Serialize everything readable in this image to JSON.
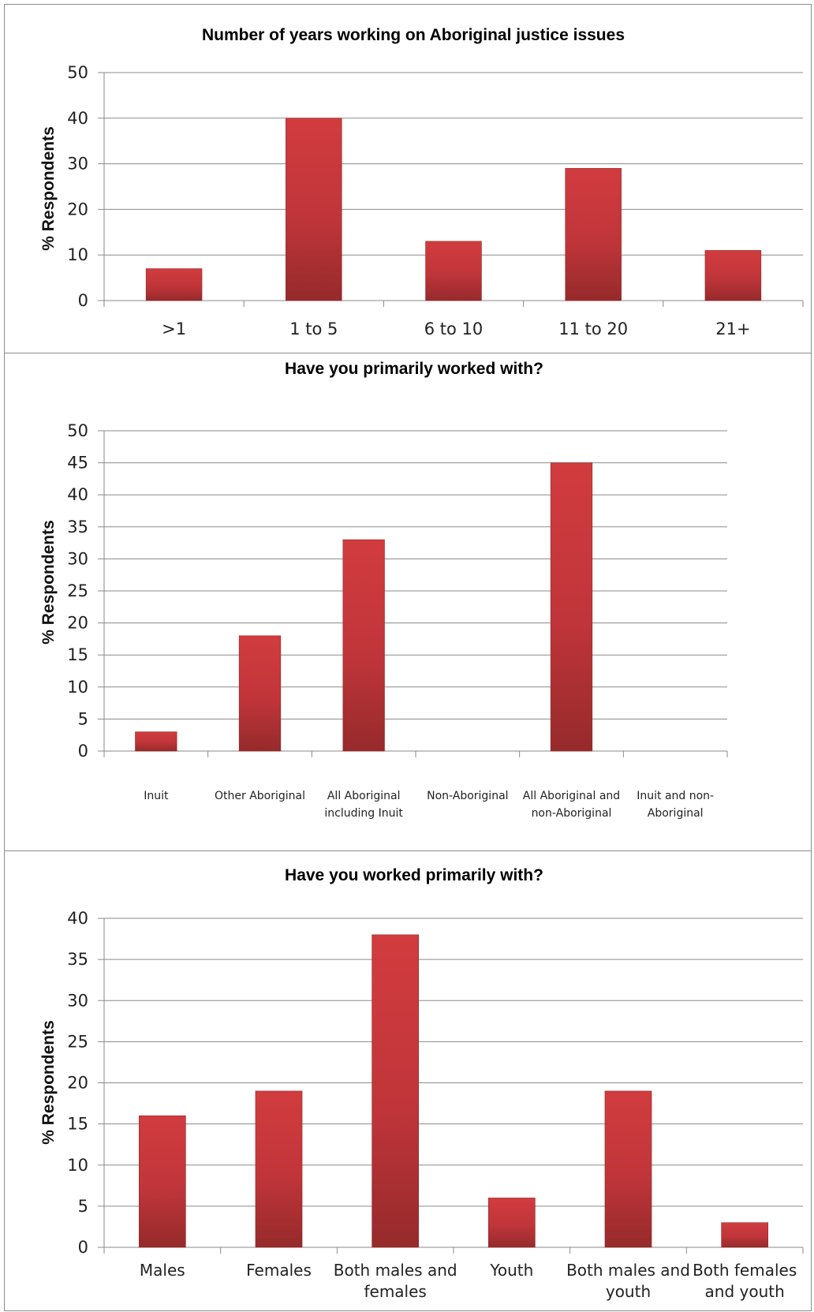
{
  "chart_data": [
    {
      "type": "bar",
      "title": "Number of years working on Aboriginal justice issues",
      "ylabel": "% Respondents",
      "xlabel": "",
      "categories": [
        ">1",
        "1 to 5",
        "6 to 10",
        "11 to 20",
        "21+"
      ],
      "values": [
        7,
        40,
        13,
        29,
        11
      ],
      "ylim": [
        0,
        50
      ],
      "yticks": [
        0,
        10,
        20,
        30,
        40,
        50
      ],
      "grid": true,
      "bar_color": "#c0353a"
    },
    {
      "type": "bar",
      "title": "Have you primarily worked with?",
      "ylabel": "% Respondents",
      "xlabel": "",
      "categories": [
        [
          "Inuit"
        ],
        [
          "Other Aboriginal"
        ],
        [
          "All Aboriginal",
          "including Inuit"
        ],
        [
          "Non-Aboriginal"
        ],
        [
          "All Aboriginal  and",
          "non-Aboriginal"
        ],
        [
          "Inuit and non-",
          "Aboriginal"
        ]
      ],
      "values": [
        3,
        18,
        33,
        0,
        45,
        0
      ],
      "ylim": [
        0,
        50
      ],
      "yticks": [
        0,
        5,
        10,
        15,
        20,
        25,
        30,
        35,
        40,
        45,
        50
      ],
      "grid": true,
      "bar_color": "#c0353a"
    },
    {
      "type": "bar",
      "title": "Have you worked primarily with?",
      "ylabel": "% Respondents",
      "xlabel": "",
      "categories": [
        [
          "Males"
        ],
        [
          "Females"
        ],
        [
          "Both males and",
          "females"
        ],
        [
          "Youth"
        ],
        [
          "Both males and",
          "youth"
        ],
        [
          "Both females",
          "and youth"
        ]
      ],
      "values": [
        16,
        19,
        38,
        6,
        19,
        3
      ],
      "ylim": [
        0,
        40
      ],
      "yticks": [
        0,
        5,
        10,
        15,
        20,
        25,
        30,
        35,
        40
      ],
      "grid": true,
      "bar_color": "#c0353a"
    }
  ]
}
